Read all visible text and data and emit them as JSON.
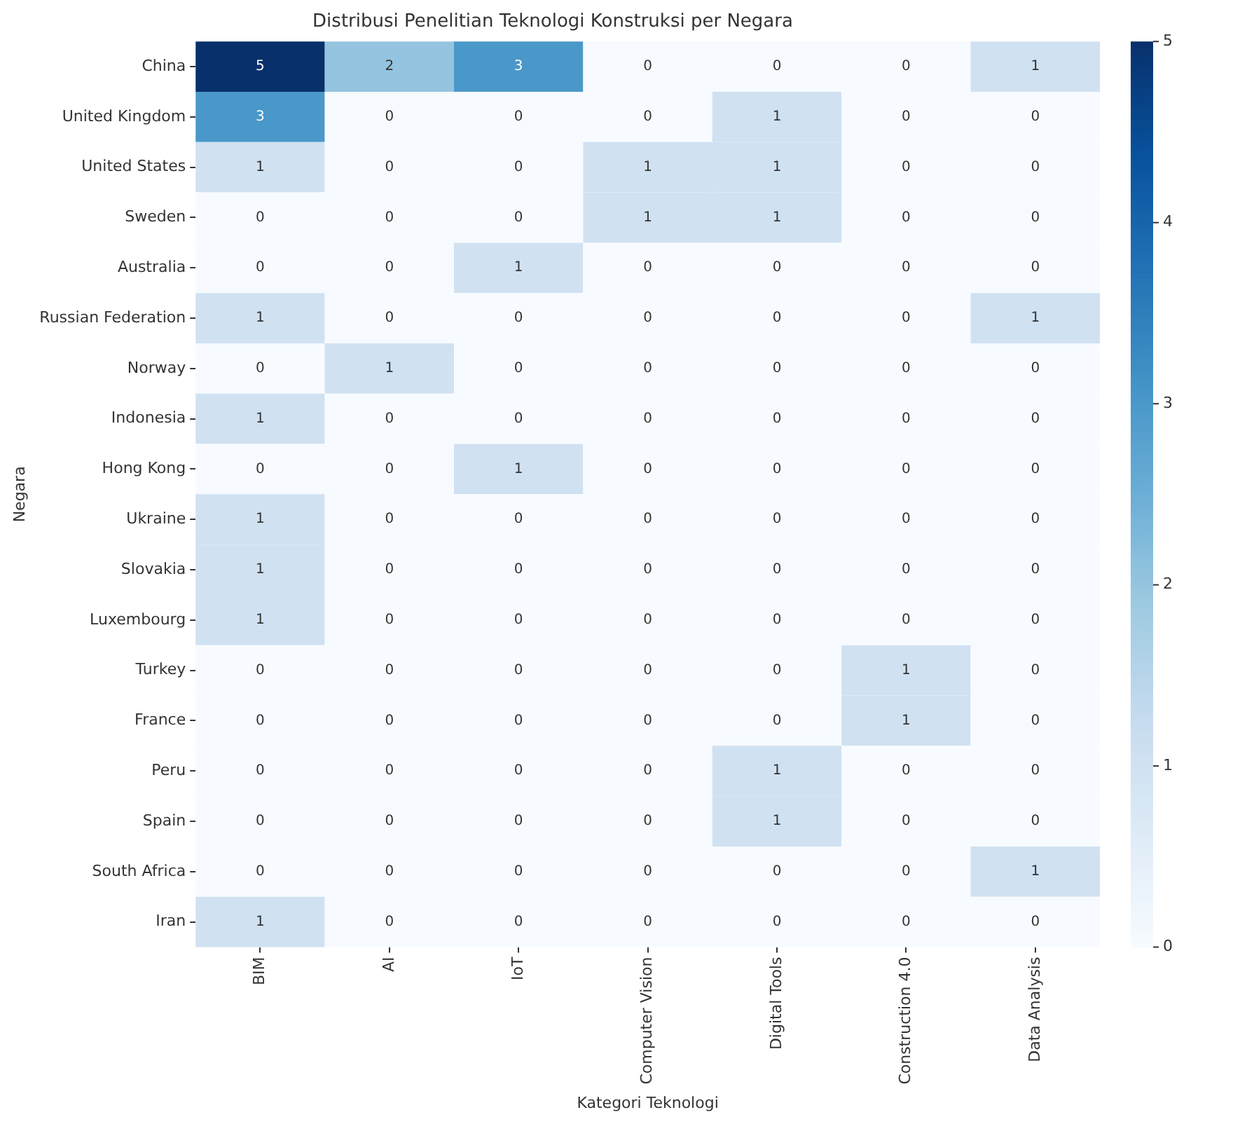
{
  "chart_data": {
    "type": "heatmap",
    "title": "Distribusi Penelitian Teknologi Konstruksi per Negara",
    "xlabel": "Kategori Teknologi",
    "ylabel": "Negara",
    "categories": [
      "BIM",
      "AI",
      "IoT",
      "Computer Vision",
      "Digital Tools",
      "Construction 4.0",
      "Data Analysis"
    ],
    "y_categories": [
      "China",
      "United Kingdom",
      "United States",
      "Sweden",
      "Australia",
      "Russian Federation",
      "Norway",
      "Indonesia",
      "Hong Kong",
      "Ukraine",
      "Slovakia",
      "Luxembourg",
      "Turkey",
      "France",
      "Peru",
      "Spain",
      "South Africa",
      "Iran"
    ],
    "cells": [
      [
        5,
        2,
        3,
        0,
        0,
        0,
        1
      ],
      [
        3,
        0,
        0,
        0,
        1,
        0,
        0
      ],
      [
        1,
        0,
        0,
        1,
        1,
        0,
        0
      ],
      [
        0,
        0,
        0,
        1,
        1,
        0,
        0
      ],
      [
        0,
        0,
        1,
        0,
        0,
        0,
        0
      ],
      [
        1,
        0,
        0,
        0,
        0,
        0,
        1
      ],
      [
        0,
        1,
        0,
        0,
        0,
        0,
        0
      ],
      [
        1,
        0,
        0,
        0,
        0,
        0,
        0
      ],
      [
        0,
        0,
        1,
        0,
        0,
        0,
        0
      ],
      [
        1,
        0,
        0,
        0,
        0,
        0,
        0
      ],
      [
        1,
        0,
        0,
        0,
        0,
        0,
        0
      ],
      [
        1,
        0,
        0,
        0,
        0,
        0,
        0
      ],
      [
        0,
        0,
        0,
        0,
        0,
        1,
        0
      ],
      [
        0,
        0,
        0,
        0,
        0,
        1,
        0
      ],
      [
        0,
        0,
        0,
        0,
        1,
        0,
        0
      ],
      [
        0,
        0,
        0,
        0,
        1,
        0,
        0
      ],
      [
        0,
        0,
        0,
        0,
        0,
        0,
        1
      ],
      [
        1,
        0,
        0,
        0,
        0,
        0,
        0
      ]
    ],
    "clim": [
      0,
      5
    ],
    "cticks": [
      0,
      1,
      2,
      3,
      4,
      5
    ],
    "data_labels": true,
    "grid": false,
    "legend": false
  }
}
